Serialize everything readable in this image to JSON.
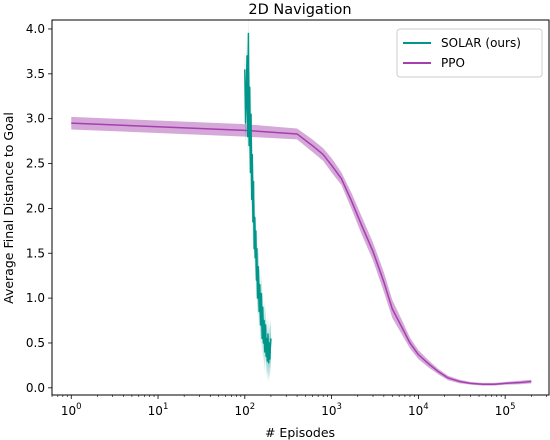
{
  "chart_data": {
    "type": "line",
    "title": "2D Navigation",
    "xlabel": "# Episodes",
    "ylabel": "Average Final Distance to Goal",
    "xscale": "log",
    "xlim": [
      0.6,
      320000
    ],
    "ylim": [
      -0.08,
      4.1
    ],
    "x_ticks": [
      {
        "value": 1,
        "base": "10",
        "exp": "0"
      },
      {
        "value": 10,
        "base": "10",
        "exp": "1"
      },
      {
        "value": 100,
        "base": "10",
        "exp": "2"
      },
      {
        "value": 1000,
        "base": "10",
        "exp": "3"
      },
      {
        "value": 10000,
        "base": "10",
        "exp": "4"
      },
      {
        "value": 100000,
        "base": "10",
        "exp": "5"
      }
    ],
    "y_ticks": [
      "0.0",
      "0.5",
      "1.0",
      "1.5",
      "2.0",
      "2.5",
      "3.0",
      "3.5",
      "4.0"
    ],
    "grid": false,
    "legend_position": "top-right",
    "series": [
      {
        "name": "SOLAR (ours)",
        "color": "#00968a",
        "x": [
          100,
          102,
          104,
          106,
          108,
          110,
          112,
          114,
          116,
          118,
          120,
          122,
          124,
          126,
          128,
          130,
          132,
          134,
          136,
          138,
          140,
          143,
          146,
          149,
          152,
          155,
          158,
          161,
          164,
          167,
          170,
          173,
          176,
          179,
          182,
          185,
          188,
          191,
          194,
          197,
          200
        ],
        "y": [
          3.55,
          2.95,
          3.25,
          3.7,
          2.8,
          3.95,
          2.7,
          3.35,
          2.4,
          3.05,
          2.1,
          2.6,
          1.85,
          2.3,
          1.55,
          1.9,
          1.45,
          1.75,
          1.2,
          1.55,
          1.0,
          1.35,
          0.85,
          1.15,
          0.7,
          1.05,
          0.55,
          0.9,
          0.5,
          0.75,
          0.4,
          0.7,
          0.35,
          0.55,
          0.3,
          0.6,
          0.28,
          0.5,
          0.32,
          0.45,
          0.55
        ],
        "band": 0.22
      },
      {
        "name": "PPO",
        "color": "#a53fad",
        "x": [
          1,
          100,
          400,
          600,
          800,
          1000,
          1300,
          1700,
          2200,
          3000,
          4000,
          5000,
          6500,
          8000,
          10000,
          13000,
          17000,
          22000,
          30000,
          40000,
          55000,
          75000,
          100000,
          150000,
          200000
        ],
        "y": [
          2.95,
          2.87,
          2.83,
          2.7,
          2.6,
          2.48,
          2.33,
          2.08,
          1.82,
          1.52,
          1.18,
          0.88,
          0.67,
          0.5,
          0.37,
          0.27,
          0.18,
          0.11,
          0.07,
          0.05,
          0.04,
          0.04,
          0.05,
          0.06,
          0.07
        ],
        "band": [
          0.07,
          0.07,
          0.06,
          0.07,
          0.07,
          0.08,
          0.07,
          0.09,
          0.1,
          0.1,
          0.11,
          0.1,
          0.08,
          0.06,
          0.05,
          0.04,
          0.03,
          0.025,
          0.02,
          0.015,
          0.015,
          0.015,
          0.015,
          0.02,
          0.02
        ]
      }
    ]
  }
}
